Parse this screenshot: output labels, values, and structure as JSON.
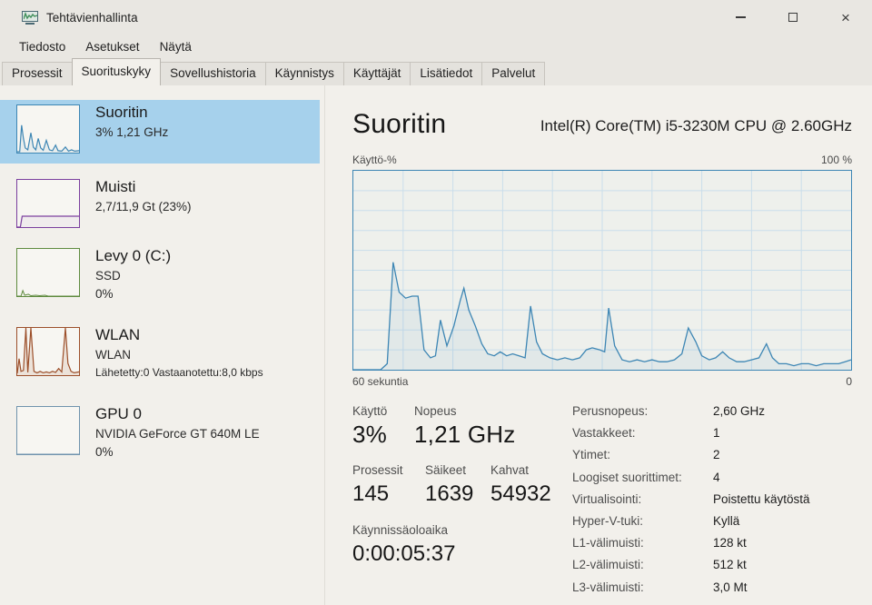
{
  "window": {
    "title": "Tehtävienhallinta"
  },
  "menu": {
    "items": [
      "Tiedosto",
      "Asetukset",
      "Näytä"
    ]
  },
  "tabs": {
    "items": [
      "Prosessit",
      "Suorituskyky",
      "Sovellushistoria",
      "Käynnistys",
      "Käyttäjät",
      "Lisätiedot",
      "Palvelut"
    ],
    "active": "Suorituskyky"
  },
  "sidebar": {
    "items": [
      {
        "title": "Suoritin",
        "line1": "3% 1,21 GHz",
        "color": "#3d86b4",
        "selected": true
      },
      {
        "title": "Muisti",
        "line1": "2,7/11,9 Gt (23%)",
        "color": "#7b3f9e",
        "selected": false
      },
      {
        "title": "Levy 0 (C:)",
        "line1": "SSD",
        "line2": "0%",
        "color": "#5f8b3f",
        "selected": false
      },
      {
        "title": "WLAN",
        "line1": "WLAN",
        "line2": "Lähetetty:0 Vastaanotettu:8,0 kbps",
        "color": "#9c4f2a",
        "selected": false
      },
      {
        "title": "GPU 0",
        "line1": "NVIDIA GeForce GT 640M LE",
        "line2": "0%",
        "color": "#6f93ad",
        "selected": false
      }
    ]
  },
  "main": {
    "title": "Suoritin",
    "subtitle": "Intel(R) Core(TM) i5-3230M CPU @ 2.60GHz",
    "graph_label_left": "Käyttö-%",
    "graph_label_right": "100 %",
    "graph_bottom_left": "60 sekuntia",
    "graph_bottom_right": "0",
    "stats_left": {
      "usage_label": "Käyttö",
      "usage_value": "3%",
      "speed_label": "Nopeus",
      "speed_value": "1,21 GHz",
      "processes_label": "Prosessit",
      "processes_value": "145",
      "threads_label": "Säikeet",
      "threads_value": "1639",
      "handles_label": "Kahvat",
      "handles_value": "54932",
      "uptime_label": "Käynnissäoloaika",
      "uptime_value": "0:00:05:37"
    },
    "stats_right": [
      {
        "label": "Perusnopeus:",
        "value": "2,60 GHz"
      },
      {
        "label": "Vastakkeet:",
        "value": "1"
      },
      {
        "label": "Ytimet:",
        "value": "2"
      },
      {
        "label": "Loogiset suorittimet:",
        "value": "4"
      },
      {
        "label": "Virtualisointi:",
        "value": "Poistettu käytöstä"
      },
      {
        "label": "Hyper-V-tuki:",
        "value": "Kyllä"
      },
      {
        "label": "L1-välimuisti:",
        "value": "128 kt"
      },
      {
        "label": "L2-välimuisti:",
        "value": "512 kt"
      },
      {
        "label": "L3-välimuisti:",
        "value": "3,0 Mt"
      }
    ]
  },
  "chart_data": {
    "main": {
      "type": "area",
      "title": "Käyttö-%",
      "xlabel": "60 sekuntia",
      "ylim": [
        0,
        100
      ],
      "legend": "none",
      "grid": "#cadeeb",
      "line": "#3d86b4",
      "fill": "rgba(61,134,180,0.07)",
      "width": 1.3,
      "points": [
        [
          0,
          0
        ],
        [
          0.055,
          0
        ],
        [
          0.068,
          3
        ],
        [
          0.08,
          54
        ],
        [
          0.092,
          39
        ],
        [
          0.105,
          36
        ],
        [
          0.118,
          37
        ],
        [
          0.13,
          37
        ],
        [
          0.142,
          10
        ],
        [
          0.155,
          6
        ],
        [
          0.165,
          7
        ],
        [
          0.175,
          25
        ],
        [
          0.188,
          12
        ],
        [
          0.202,
          22
        ],
        [
          0.215,
          35
        ],
        [
          0.222,
          41
        ],
        [
          0.232,
          30
        ],
        [
          0.245,
          22
        ],
        [
          0.258,
          13
        ],
        [
          0.27,
          8
        ],
        [
          0.283,
          7
        ],
        [
          0.295,
          9
        ],
        [
          0.308,
          7
        ],
        [
          0.32,
          8
        ],
        [
          0.333,
          7
        ],
        [
          0.345,
          6
        ],
        [
          0.356,
          32
        ],
        [
          0.368,
          14
        ],
        [
          0.38,
          8
        ],
        [
          0.395,
          6
        ],
        [
          0.41,
          5
        ],
        [
          0.425,
          6
        ],
        [
          0.44,
          5
        ],
        [
          0.455,
          6
        ],
        [
          0.468,
          10
        ],
        [
          0.48,
          11
        ],
        [
          0.495,
          10
        ],
        [
          0.505,
          9
        ],
        [
          0.513,
          31
        ],
        [
          0.525,
          12
        ],
        [
          0.54,
          5
        ],
        [
          0.555,
          4
        ],
        [
          0.57,
          5
        ],
        [
          0.585,
          4
        ],
        [
          0.6,
          5
        ],
        [
          0.615,
          4
        ],
        [
          0.63,
          4
        ],
        [
          0.645,
          5
        ],
        [
          0.66,
          8
        ],
        [
          0.673,
          21
        ],
        [
          0.688,
          14
        ],
        [
          0.7,
          7
        ],
        [
          0.715,
          5
        ],
        [
          0.728,
          6
        ],
        [
          0.742,
          9
        ],
        [
          0.755,
          6
        ],
        [
          0.77,
          4
        ],
        [
          0.785,
          4
        ],
        [
          0.8,
          5
        ],
        [
          0.815,
          6
        ],
        [
          0.83,
          13
        ],
        [
          0.842,
          6
        ],
        [
          0.855,
          3
        ],
        [
          0.87,
          3
        ],
        [
          0.885,
          2
        ],
        [
          0.9,
          3
        ],
        [
          0.915,
          3
        ],
        [
          0.93,
          2
        ],
        [
          0.945,
          3
        ],
        [
          0.96,
          3
        ],
        [
          0.975,
          3
        ],
        [
          0.988,
          4
        ],
        [
          1,
          5
        ]
      ]
    },
    "cpu_mini": {
      "type": "area",
      "ylim": [
        0,
        100
      ],
      "line": "#3d86b4",
      "fill": "rgba(61,134,180,0.08)",
      "width": 1.2,
      "points": [
        [
          0,
          2
        ],
        [
          0.04,
          2
        ],
        [
          0.07,
          58
        ],
        [
          0.1,
          30
        ],
        [
          0.13,
          10
        ],
        [
          0.17,
          6
        ],
        [
          0.22,
          42
        ],
        [
          0.26,
          12
        ],
        [
          0.3,
          6
        ],
        [
          0.34,
          30
        ],
        [
          0.38,
          10
        ],
        [
          0.42,
          5
        ],
        [
          0.47,
          26
        ],
        [
          0.52,
          6
        ],
        [
          0.57,
          4
        ],
        [
          0.62,
          16
        ],
        [
          0.66,
          4
        ],
        [
          0.72,
          3
        ],
        [
          0.78,
          12
        ],
        [
          0.83,
          3
        ],
        [
          0.88,
          6
        ],
        [
          0.93,
          3
        ],
        [
          1,
          4
        ]
      ]
    },
    "mem_mini": {
      "type": "area",
      "ylim": [
        0,
        100
      ],
      "line": "#7b3f9e",
      "fill": "rgba(123,63,158,0.05)",
      "width": 1.2,
      "points": [
        [
          0,
          0
        ],
        [
          0.05,
          0
        ],
        [
          0.08,
          23
        ],
        [
          1,
          23
        ]
      ]
    },
    "disk_mini": {
      "type": "area",
      "ylim": [
        0,
        100
      ],
      "line": "#5f8b3f",
      "fill": "rgba(95,139,63,0.05)",
      "width": 1,
      "points": [
        [
          0,
          0
        ],
        [
          0.06,
          0
        ],
        [
          0.09,
          12
        ],
        [
          0.12,
          2
        ],
        [
          0.18,
          4
        ],
        [
          0.22,
          1
        ],
        [
          0.3,
          2
        ],
        [
          0.36,
          1
        ],
        [
          0.45,
          2
        ],
        [
          0.5,
          0
        ],
        [
          1,
          0
        ]
      ]
    },
    "wlan_mini": {
      "type": "area",
      "ylim": [
        0,
        100
      ],
      "line": "#9c4f2a",
      "fill": "rgba(156,79,42,0.12)",
      "width": 1.2,
      "points": [
        [
          0,
          4
        ],
        [
          0.03,
          35
        ],
        [
          0.06,
          8
        ],
        [
          0.1,
          10
        ],
        [
          0.14,
          100
        ],
        [
          0.17,
          6
        ],
        [
          0.22,
          100
        ],
        [
          0.27,
          8
        ],
        [
          0.32,
          5
        ],
        [
          0.37,
          8
        ],
        [
          0.42,
          5
        ],
        [
          0.47,
          7
        ],
        [
          0.52,
          5
        ],
        [
          0.57,
          8
        ],
        [
          0.62,
          6
        ],
        [
          0.67,
          14
        ],
        [
          0.72,
          7
        ],
        [
          0.78,
          100
        ],
        [
          0.82,
          25
        ],
        [
          0.87,
          8
        ],
        [
          0.92,
          5
        ],
        [
          1,
          7
        ]
      ]
    },
    "gpu_mini": {
      "type": "area",
      "ylim": [
        0,
        100
      ],
      "line": "#6f93ad",
      "fill": "none",
      "width": 1,
      "points": [
        [
          0,
          0
        ],
        [
          1,
          0
        ]
      ]
    }
  }
}
